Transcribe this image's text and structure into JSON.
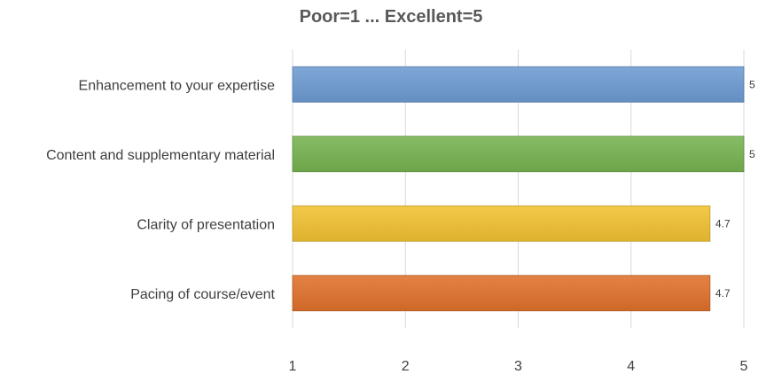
{
  "chart_data": {
    "type": "bar",
    "orientation": "horizontal",
    "title": "Poor=1 ... Excellent=5",
    "xlabel": "",
    "ylabel": "",
    "categories": [
      "Enhancement to your expertise",
      "Content and supplementary material",
      "Clarity of presentation",
      "Pacing of course/event"
    ],
    "values": [
      5,
      5,
      4.7,
      4.7
    ],
    "data_labels": [
      "5",
      "5",
      "4.7",
      "4.7"
    ],
    "xlim": [
      1,
      5
    ],
    "xticks": [
      "1",
      "2",
      "3",
      "4",
      "5"
    ],
    "grid": "vertical",
    "legend": "none",
    "colors": [
      "#6d9bd2",
      "#77b350",
      "#f1c232",
      "#e0712c"
    ]
  }
}
